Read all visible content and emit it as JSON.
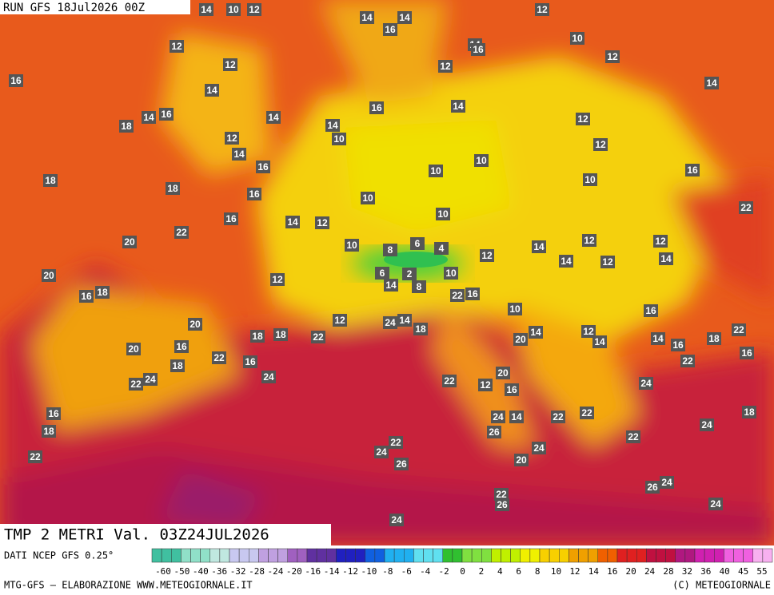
{
  "header": {
    "run": "RUN GFS 18Jul2026 00Z"
  },
  "map": {
    "title": "TMP 2 METRI Val. 03Z24JUL2026",
    "point_labels": [
      14,
      10,
      12,
      14,
      14,
      16,
      12,
      12,
      14,
      16,
      12,
      10,
      12,
      12,
      16,
      14,
      16,
      14,
      18,
      14,
      16,
      14,
      14,
      10,
      12,
      14,
      16,
      12,
      12,
      14,
      10,
      10,
      10,
      16,
      18,
      18,
      16,
      10,
      10,
      22,
      16,
      14,
      12,
      20,
      22,
      10,
      6,
      4,
      8,
      12,
      14,
      12,
      12,
      20,
      12,
      6,
      2,
      14,
      8,
      10,
      14,
      12,
      14,
      22,
      16,
      16,
      18,
      10,
      16,
      20,
      12,
      24,
      14,
      18,
      18,
      18,
      22,
      20,
      14,
      12,
      14,
      14,
      18,
      22,
      20,
      16,
      22,
      16,
      18,
      16,
      16,
      22,
      24,
      20,
      12,
      16,
      22,
      24,
      22,
      24,
      16,
      18,
      24,
      14,
      22,
      22,
      18,
      26,
      24,
      22,
      22,
      22,
      24,
      24,
      20,
      26,
      26,
      24,
      22,
      26,
      24,
      24
    ]
  },
  "legend": {
    "source": "DATI NCEP GFS 0.25°",
    "scale": [
      -60,
      -50,
      -40,
      -36,
      -32,
      -28,
      -24,
      -20,
      -16,
      -14,
      -12,
      -10,
      -8,
      -6,
      -4,
      -2,
      0,
      2,
      4,
      6,
      8,
      10,
      12,
      14,
      16,
      20,
      24,
      28,
      32,
      36,
      40,
      45,
      55
    ]
  },
  "footer": {
    "credit": "MTG-GFS — ELABORAZIONE WWW.METEOGIORNALE.IT",
    "copyright": "(C) METEOGIORNALE"
  }
}
